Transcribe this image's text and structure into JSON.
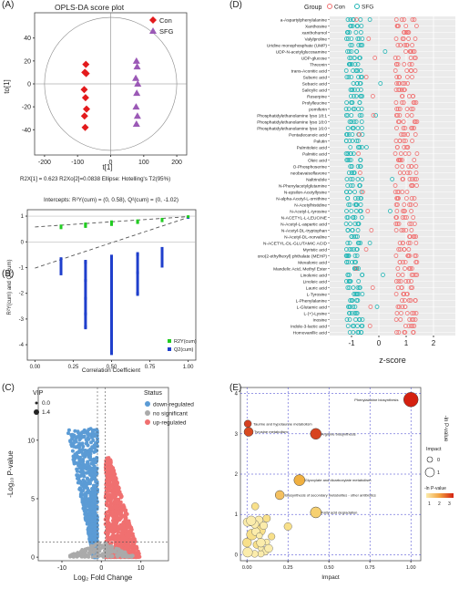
{
  "panels": {
    "A": {
      "tag": "(A)",
      "title": "OPLS-DA score plot",
      "ylabel": "to[1]",
      "xlabel": "t[1]",
      "footer": "R2X[1] = 0.623   R2Xo[2]=0.0838   Ellipse: Hotelling's T2(95%)",
      "legend": [
        {
          "name": "Con",
          "color": "#e31a1c",
          "shape": "diamond"
        },
        {
          "name": "SFG",
          "color": "#9b59b6",
          "shape": "triangle"
        }
      ],
      "xticks": [
        "-200",
        "-100",
        "0",
        "100",
        "200"
      ],
      "yticks": [
        "40",
        "20",
        "0",
        "-20",
        "-40"
      ],
      "xrange": [
        -230,
        230
      ],
      "yrange": [
        -62,
        62
      ]
    },
    "B": {
      "tag": "(B)",
      "title": "Intercepts: R²Y(cum) = (0, 0.58), Q²(cum) = (0, -1.02)",
      "ylabel": "R²Y(cum) and Q²(cum)",
      "xlabel": "Correlation Coefficient",
      "legend": [
        {
          "name": "R2Y(cum)",
          "color": "#22cc22"
        },
        {
          "name": "Q2(cum)",
          "color": "#1f3fcc"
        }
      ],
      "xticks": [
        "0.00",
        "0.25",
        "0.50",
        "0.75",
        "1.00"
      ],
      "yticks": [
        "1",
        "0",
        "-1",
        "-2",
        "-3",
        "-4"
      ],
      "xrange": [
        -0.05,
        1.05
      ],
      "yrange": [
        -4.6,
        1.25
      ]
    },
    "C": {
      "tag": "(C)",
      "xlabel": "Log₂ Fold Change",
      "ylabel": "-Log₁₀ P-value",
      "vip_title": "VIP",
      "vip_items": [
        "0.0",
        "1.4"
      ],
      "status_title": "Status",
      "status_items": [
        {
          "name": "down-regulated",
          "color": "#5b9bd5"
        },
        {
          "name": "no significant",
          "color": "#aaaaaa"
        },
        {
          "name": "up-regulated",
          "color": "#f07070"
        }
      ],
      "xticks": [
        "-10",
        "0",
        "10"
      ],
      "yticks": [
        "0",
        "5",
        "10"
      ],
      "xrange": [
        -16,
        17
      ],
      "yrange": [
        -0.3,
        14.5
      ]
    },
    "D": {
      "tag": "(D)",
      "group_label": "Group",
      "legend": [
        {
          "name": "Con",
          "color": "#f07070"
        },
        {
          "name": "SFG",
          "color": "#1fb5b5"
        }
      ],
      "xlabel": "z-score",
      "xticks": [
        "-1",
        "0",
        "1",
        "2"
      ],
      "xrange": [
        -1.8,
        2.8
      ],
      "metabolites": [
        "a-Aspartylphenylalanine",
        "Xanthosine",
        "xanthohumol",
        "Valylproline",
        "Uridine monophosphate (UMP)",
        "UDP-N-acetylglucosamine",
        "UDP-glucose",
        "Threonin",
        "trans-Aconitic acid",
        "Suberic acid",
        "Sebacic acid",
        "Salicylic acid",
        "Reserpine",
        "Prolylleucine",
        "pomiferin",
        "Phosphatidylethanolamine lyso 18:1",
        "Phosphatidylethanolamine lyso 18:0",
        "Phosphatidylethanolamine lyso 16:0",
        "Pentadecanoic acid",
        "Palutin",
        "Palmitoleic acid",
        "Palmitic acid",
        "Oleic acid",
        "O-Phosphoserine",
        "neobavaisoflavone",
        "Naltrindole",
        "N-Phenylacetylglutamine",
        "N-epsilon-Acetyllysine",
        "N-alpha-Acetyl-L-ornithine",
        "N-Acetylhistidine",
        "N-Acetyl-L-tyrosine",
        "N-ACETYL-L-LEUCINE",
        "N-Acetyl-L-aspartic acid",
        "N-Acetyl-DL-tryptophan",
        "N-Acetyl-DL-norvaline",
        "N-ACETYL-DL-GLUTAMIC ACID",
        "Myristic acid",
        "ono(2-ethylhexyl) phthalate (MEHP)",
        "Mevalonic acid",
        "Mandelic Acid, Methyl Ester",
        "Linolenic acid",
        "Linoleic acid",
        "Lauric acid",
        "L-Tyrosine",
        "L-Phenylalanine",
        "L-Glutamic acid",
        "L-(+)-Lysine",
        "Inosine",
        "Indole-3-lactic acid",
        "Homovanillic acid"
      ]
    },
    "E": {
      "tag": "(E)",
      "xlabel": "Impact",
      "ylabel": "-ln P-value",
      "xticks": [
        "0.00",
        "0.25",
        "0.50",
        "0.75",
        "1.00"
      ],
      "yticks": [
        "0",
        "1",
        "2",
        "3",
        "4"
      ],
      "xrange": [
        -0.04,
        1.06
      ],
      "yrange": [
        -0.15,
        4.15
      ],
      "impact_title": "Impact",
      "impact_items": [
        "0",
        "1"
      ],
      "pvalue_title": "-ln P-value",
      "pvalue_ticks": [
        "1",
        "2",
        "3"
      ],
      "pathways": [
        {
          "label": "Phenylalanine biosynthesis",
          "x": 1.0,
          "y": 3.85,
          "r": 8,
          "color": "#d42010"
        },
        {
          "label": "Taurine and hypotaurine metabolism",
          "x": 0.005,
          "y": 3.25,
          "r": 4,
          "color": "#d64020"
        },
        {
          "label": "Tyrosine metabolism",
          "x": 0.01,
          "y": 3.05,
          "r": 5,
          "color": "#d84a22"
        },
        {
          "label": "Arginine biosynthesis",
          "x": 0.42,
          "y": 3.0,
          "r": 6,
          "color": "#d74420"
        },
        {
          "label": "Glyoxylate and dicarboxylate metabolism",
          "x": 0.32,
          "y": 1.85,
          "r": 6,
          "color": "#f0b040"
        },
        {
          "label": "Biosynthesis of secondary metabolites - other antibiotics",
          "x": 0.2,
          "y": 1.48,
          "r": 5,
          "color": "#f4c060"
        },
        {
          "label": "Fatty acid degradation",
          "x": 0.42,
          "y": 1.05,
          "r": 6,
          "color": "#f6d070"
        }
      ],
      "chart_data_note": ""
    }
  },
  "chart_data": [
    {
      "type": "scatter",
      "title": "OPLS-DA score plot",
      "xlabel": "t[1]",
      "ylabel": "to[1]",
      "xlim": [
        -230,
        230
      ],
      "ylim": [
        -62,
        62
      ],
      "series": [
        {
          "name": "Con",
          "x": [
            -75,
            -78,
            -74,
            -80,
            -76,
            -73,
            -79,
            -77
          ],
          "y": [
            17,
            10,
            9,
            -5,
            -12,
            -22,
            -28,
            -38
          ]
        },
        {
          "name": "SFG",
          "x": [
            78,
            80,
            76,
            82,
            79,
            77,
            81,
            78
          ],
          "y": [
            20,
            15,
            5,
            0,
            -8,
            -20,
            -28,
            -35
          ]
        }
      ]
    },
    {
      "type": "scatter",
      "title": "Intercepts: R²Y(cum) = (0, 0.58), Q²(cum) = (0, -1.02)",
      "xlabel": "Correlation Coefficient",
      "ylabel": "R²Y(cum) and Q²(cum)",
      "xlim": [
        -0.05,
        1.05
      ],
      "ylim": [
        -4.6,
        1.25
      ],
      "series": [
        {
          "name": "R2Y(cum)",
          "x": [
            0.17,
            0.17,
            0.33,
            0.33,
            0.33,
            0.5,
            0.5,
            0.5,
            0.67,
            0.67,
            0.83,
            0.83,
            1.0
          ],
          "y": [
            0.55,
            0.62,
            0.6,
            0.7,
            0.66,
            0.72,
            0.78,
            0.68,
            0.75,
            0.82,
            0.82,
            0.88,
            0.98
          ]
        },
        {
          "name": "Q2(cum)",
          "x": [
            0.17,
            0.17,
            0.17,
            0.33,
            0.33,
            0.33,
            0.33,
            0.33,
            0.5,
            0.5,
            0.5,
            0.5,
            0.5,
            0.5,
            0.67,
            0.67,
            0.67,
            0.83,
            0.83,
            1.0
          ],
          "y": [
            -0.7,
            -1.0,
            -1.2,
            -0.8,
            -1.5,
            -2.2,
            -2.8,
            -3.3,
            -0.6,
            -1.4,
            -2.0,
            -2.8,
            -3.6,
            -4.3,
            -0.5,
            -1.2,
            -2.0,
            -0.3,
            -0.9,
            0.95
          ]
        }
      ]
    },
    {
      "type": "scatter",
      "title": "",
      "xlabel": "Log₂ Fold Change",
      "ylabel": "-Log₁₀ P-value",
      "xlim": [
        -16,
        17
      ],
      "ylim": [
        -0.3,
        14.5
      ],
      "series": [
        {
          "name": "down-regulated",
          "x": [
            -3,
            -5,
            -2,
            -7,
            -4,
            -1.5,
            -6,
            -8,
            -3.5,
            -2.5
          ],
          "y": [
            10.5,
            8,
            6,
            5,
            4,
            3,
            2.5,
            2,
            9,
            7
          ]
        },
        {
          "name": "no significant",
          "x": [
            -0.5,
            0,
            0.5,
            -1,
            1,
            0.2,
            -0.3
          ],
          "y": [
            0.5,
            1.2,
            0.8,
            0.3,
            0.4,
            2.5,
            1.8
          ]
        },
        {
          "name": "up-regulated",
          "x": [
            1.5,
            3,
            5,
            2,
            8,
            4,
            12,
            6,
            2.5,
            10
          ],
          "y": [
            6,
            5,
            4,
            3,
            2.5,
            3.5,
            2,
            6,
            8,
            3
          ]
        }
      ]
    },
    {
      "type": "scatter",
      "title": "",
      "xlabel": "z-score",
      "ylabel": "",
      "xlim": [
        -1.8,
        2.8
      ],
      "series": [
        {
          "name": "Con",
          "x": [
            0.8,
            1.0,
            1.2,
            0.6
          ],
          "y": [
            "a-Aspartylphenylalanine",
            "Xanthosine",
            "Valylproline",
            "Uridine monophosphate (UMP)"
          ]
        },
        {
          "name": "SFG",
          "x": [
            -0.9,
            -1.0,
            -0.8,
            -1.1
          ],
          "y": [
            "a-Aspartylphenylalanine",
            "Xanthosine",
            "Valylproline",
            "Uridine monophosphate (UMP)"
          ]
        }
      ]
    },
    {
      "type": "scatter",
      "title": "",
      "xlabel": "Impact",
      "ylabel": "-ln P-value",
      "xlim": [
        -0.04,
        1.06
      ],
      "ylim": [
        -0.15,
        4.15
      ],
      "series": [
        {
          "name": "Pathways",
          "x": [
            1.0,
            0.005,
            0.01,
            0.42,
            0.32,
            0.2,
            0.42,
            0.05,
            0.02,
            0.08,
            0.12,
            0.0,
            0.15,
            0.03,
            0.25,
            0.06
          ],
          "y": [
            3.85,
            3.25,
            3.05,
            3.0,
            1.85,
            1.48,
            1.05,
            1.2,
            0.8,
            0.6,
            0.9,
            0.3,
            0.45,
            0.5,
            0.7,
            0.25
          ]
        }
      ]
    }
  ]
}
